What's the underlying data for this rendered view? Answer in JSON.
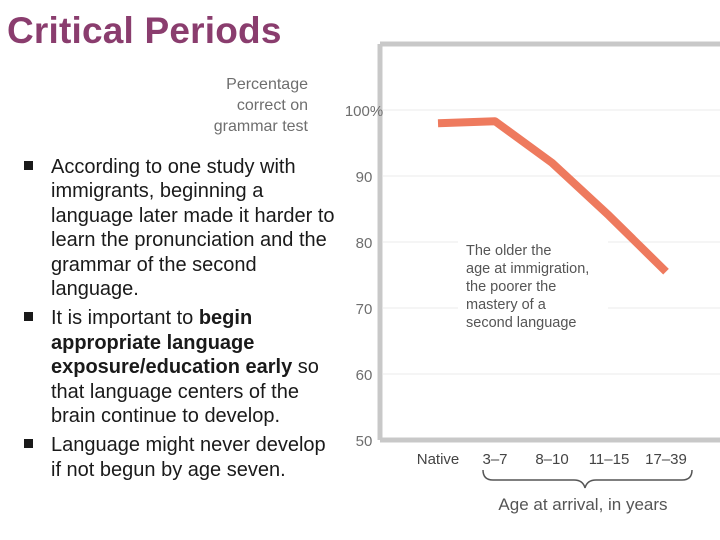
{
  "slide": {
    "title": "Critical Periods",
    "bullets": [
      [
        {
          "text": "According to one study with immigrants, beginning a language later made it harder to learn the pronunciation and the grammar of the second language.",
          "bold": false
        }
      ],
      [
        {
          "text": "It is important to ",
          "bold": false
        },
        {
          "text": "begin appropriate language exposure/education early",
          "bold": true
        },
        {
          "text": " so that language centers of the brain continue to  develop.",
          "bold": false
        }
      ],
      [
        {
          "text": "Language might never develop if not begun by age seven.",
          "bold": false
        }
      ]
    ]
  },
  "chart_data": {
    "type": "line",
    "ylabel": [
      "Percentage",
      "correct on",
      "grammar test"
    ],
    "xlabel": "Age at arrival, in years",
    "categories": [
      "Native",
      "3–7",
      "8–10",
      "11–15",
      "17–39"
    ],
    "y_tick_labels": [
      "100%",
      "90",
      "80",
      "70",
      "60",
      "50"
    ],
    "y_ticks": [
      100,
      90,
      80,
      70,
      60,
      50
    ],
    "ylim": [
      50,
      100
    ],
    "series": [
      {
        "values": [
          98,
          98.3,
          92,
          84,
          75.5
        ]
      }
    ],
    "annotation": [
      "The older the",
      "age at immigration,",
      "the poorer the",
      "mastery of a",
      "second language"
    ],
    "grid": true,
    "colors": {
      "line": "#ee7a5e",
      "grid": "#ebebeb",
      "frame": "#c8c8c8",
      "axis_text": "#6e6e6e"
    }
  }
}
